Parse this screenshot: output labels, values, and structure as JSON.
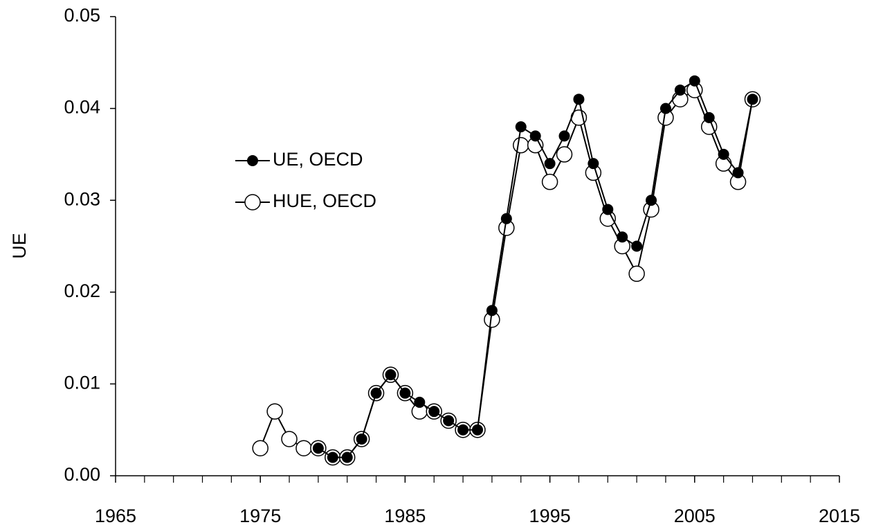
{
  "chart_data": {
    "type": "line",
    "y_label": "UE",
    "x": [
      1975,
      1976,
      1977,
      1978,
      1979,
      1980,
      1981,
      1982,
      1983,
      1984,
      1985,
      1986,
      1987,
      1988,
      1989,
      1990,
      1991,
      1992,
      1993,
      1994,
      1995,
      1996,
      1997,
      1998,
      1999,
      2000,
      2001,
      2002,
      2003,
      2004,
      2005,
      2006,
      2007,
      2008,
      2009
    ],
    "series": [
      {
        "name": "UE, OECD",
        "color": "#000000",
        "marker": "filled",
        "values": [
          null,
          null,
          null,
          null,
          0.003,
          0.002,
          0.002,
          0.004,
          0.009,
          0.011,
          0.009,
          0.008,
          0.007,
          0.006,
          0.005,
          0.005,
          0.018,
          0.028,
          0.038,
          0.037,
          0.034,
          0.037,
          0.041,
          0.034,
          0.029,
          0.026,
          0.025,
          0.03,
          0.04,
          0.042,
          0.043,
          0.039,
          0.035,
          0.033,
          0.041
        ]
      },
      {
        "name": "HUE, OECD",
        "color": "#000000",
        "marker": "open",
        "values": [
          0.003,
          0.007,
          0.004,
          0.003,
          0.003,
          0.002,
          0.002,
          0.004,
          0.009,
          0.011,
          0.009,
          0.007,
          0.007,
          0.006,
          0.005,
          0.005,
          0.017,
          0.027,
          0.036,
          0.036,
          0.032,
          0.035,
          0.039,
          0.033,
          0.028,
          0.025,
          0.022,
          0.029,
          0.039,
          0.041,
          0.042,
          0.038,
          0.034,
          0.032,
          0.041
        ]
      }
    ],
    "xlim": [
      1965,
      2015
    ],
    "xticks": [
      1965,
      1975,
      1985,
      1995,
      2005,
      2015
    ],
    "x_minor_step": 2,
    "ylim": [
      0,
      0.05
    ],
    "yticks": [
      {
        "value": 0,
        "label": "0.00"
      },
      0.01,
      0.02,
      0.03,
      0.04,
      0.05
    ],
    "legend": "upper left",
    "grid": false
  }
}
